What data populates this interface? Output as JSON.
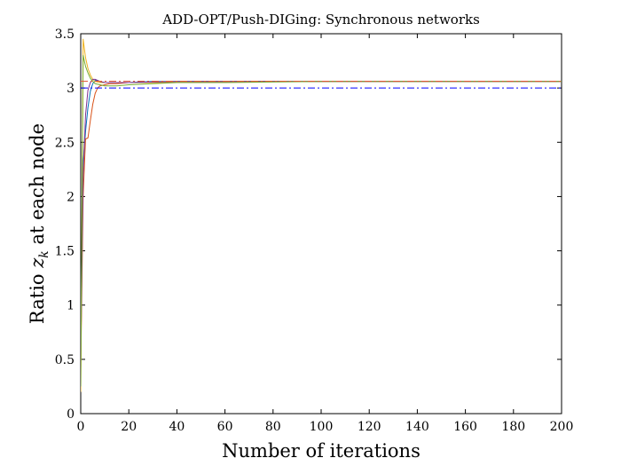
{
  "chart_data": {
    "type": "line",
    "title": "ADD-OPT/Push-DIGing: Synchronous networks",
    "xlabel": "Number of iterations",
    "ylabel": "Ratio z_k at each node",
    "ylabel_prefix": "Ratio ",
    "ylabel_var": "z",
    "ylabel_sub": "k",
    "ylabel_suffix": " at each node",
    "xlim": [
      0,
      200
    ],
    "ylim": [
      0,
      3.5
    ],
    "xticks": [
      0,
      20,
      40,
      60,
      80,
      100,
      120,
      140,
      160,
      180,
      200
    ],
    "yticks": [
      0,
      0.5,
      1,
      1.5,
      2,
      2.5,
      3,
      3.5
    ],
    "yticklabels": [
      "0",
      "0.5",
      "1",
      "1.5",
      "2",
      "2.5",
      "3",
      "3.5"
    ],
    "grid": false,
    "series": [
      {
        "color": "#0072BD",
        "style": "solid",
        "x": [
          0,
          1,
          2,
          3,
          4,
          5,
          6,
          7,
          8,
          10,
          12,
          15,
          20,
          30,
          50,
          80,
          120,
          200
        ],
        "y": [
          0.9,
          2.3,
          2.6,
          2.82,
          2.97,
          3.04,
          3.07,
          3.07,
          3.06,
          3.05,
          3.05,
          3.05,
          3.05,
          3.06,
          3.06,
          3.06,
          3.06,
          3.06
        ]
      },
      {
        "color": "#D95319",
        "style": "solid",
        "x": [
          0,
          1,
          2,
          3,
          4,
          5,
          6,
          7,
          8,
          10,
          12,
          15,
          20,
          30,
          50,
          80,
          120,
          200
        ],
        "y": [
          0.4,
          2.0,
          2.53,
          2.54,
          2.7,
          2.85,
          2.95,
          3.0,
          3.02,
          3.03,
          3.04,
          3.04,
          3.05,
          3.05,
          3.06,
          3.06,
          3.06,
          3.06
        ]
      },
      {
        "color": "#EDB120",
        "style": "solid",
        "x": [
          0,
          1,
          2,
          3,
          4,
          5,
          6,
          8,
          10,
          15,
          20,
          30,
          50,
          80,
          120,
          200
        ],
        "y": [
          0.2,
          3.45,
          3.28,
          3.18,
          3.12,
          3.08,
          3.06,
          3.05,
          3.05,
          3.05,
          3.05,
          3.05,
          3.06,
          3.06,
          3.06,
          3.06
        ]
      },
      {
        "color": "#7E2F8E",
        "style": "solid",
        "x": [
          0,
          1,
          2,
          3,
          4,
          5,
          6,
          7,
          8,
          10,
          12,
          15,
          20,
          40,
          80,
          200
        ],
        "y": [
          0.5,
          2.2,
          2.75,
          2.98,
          3.05,
          3.08,
          3.08,
          3.07,
          3.06,
          3.05,
          3.05,
          3.05,
          3.05,
          3.06,
          3.06,
          3.06
        ]
      },
      {
        "color": "#77AC30",
        "style": "solid",
        "x": [
          0,
          1,
          2,
          3,
          4,
          5,
          6,
          8,
          10,
          15,
          20,
          30,
          40,
          60,
          100,
          200
        ],
        "y": [
          0.25,
          3.3,
          3.2,
          3.14,
          3.09,
          3.06,
          3.04,
          3.03,
          3.02,
          3.02,
          3.03,
          3.04,
          3.05,
          3.05,
          3.06,
          3.06
        ]
      },
      {
        "color": "#0000FF",
        "style": "dashdot",
        "x": [
          0,
          200
        ],
        "y": [
          3.0,
          3.0
        ]
      },
      {
        "color": "#E05A3A",
        "style": "dashdot",
        "x": [
          0,
          200
        ],
        "y": [
          3.063,
          3.063
        ]
      }
    ]
  }
}
